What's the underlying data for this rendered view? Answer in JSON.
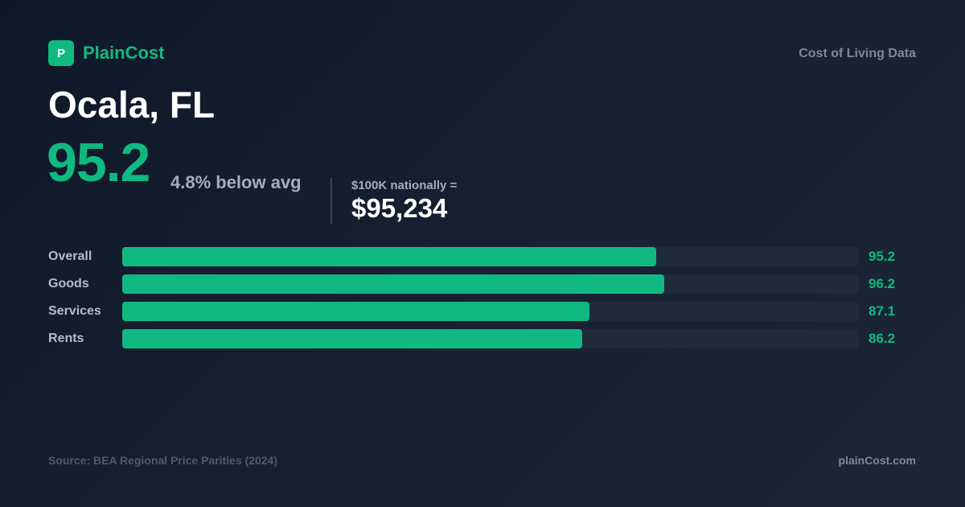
{
  "brand": {
    "logo_letter": "P",
    "name": "PlainCost",
    "tagline": "Cost of Living Data",
    "accent_color": "#10b981"
  },
  "city": "Ocala, FL",
  "index_value": "95.2",
  "difference_text": "4.8% below avg",
  "national": {
    "label": "$100K nationally =",
    "value": "$95,234"
  },
  "chart_data": {
    "type": "bar",
    "orientation": "horizontal",
    "categories": [
      "Overall",
      "Goods",
      "Services",
      "Rents"
    ],
    "values": [
      95.2,
      96.2,
      87.1,
      86.2
    ],
    "value_labels": [
      "95.2",
      "96.2",
      "87.1",
      "86.2"
    ],
    "xlim": [
      30,
      120
    ],
    "bar_color": "#10b981",
    "track_color": "#1f2a3b",
    "grid": false
  },
  "footer": {
    "source": "Source: BEA Regional Price Parities (2024)",
    "site": "plainCost.com"
  }
}
